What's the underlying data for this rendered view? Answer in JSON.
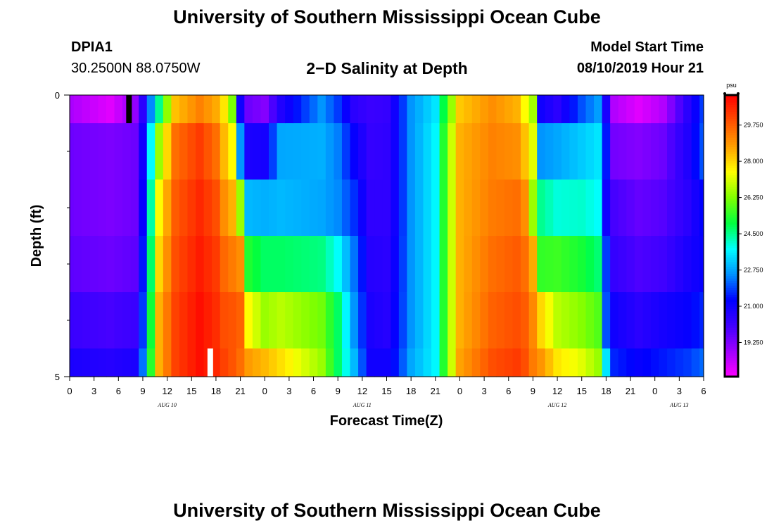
{
  "header": {
    "title": "University of Southern Mississippi Ocean Cube",
    "station": "DPIA1",
    "coords": "30.2500N 88.0750W",
    "subtitle": "2−D Salinity at Depth",
    "model_label": "Model Start Time",
    "model_time": "08/10/2019 Hour 21"
  },
  "footer": {
    "title": "University of Southern Mississippi Ocean Cube"
  },
  "chart_data": {
    "type": "heatmap",
    "title": "2−D Salinity at Depth",
    "xlabel": "Forecast Time(Z)",
    "ylabel": "Depth (ft)",
    "x_start_hour": 0,
    "x_step_hours": 1,
    "x_tick_labels": [
      "0",
      "3",
      "6",
      "9",
      "12",
      "15",
      "18",
      "21",
      "0",
      "3",
      "6",
      "9",
      "12",
      "15",
      "18",
      "21",
      "0",
      "3",
      "6",
      "9",
      "12",
      "15",
      "18",
      "21",
      "0",
      "3",
      "6"
    ],
    "x_date_labels": [
      {
        "label": "AUG 10",
        "hour": 12
      },
      {
        "label": "AUG 11",
        "hour": 36
      },
      {
        "label": "AUG 12",
        "hour": 60
      },
      {
        "label": "AUG 13",
        "hour": 75
      }
    ],
    "y_tick_labels": [
      "0",
      "5"
    ],
    "ylim": [
      0,
      5
    ],
    "y_minor_ticks": [
      1,
      2,
      3,
      4
    ],
    "depth_levels": [
      0,
      1,
      2,
      3,
      4,
      5
    ],
    "colorbar": {
      "unit": "psu",
      "range": [
        17.6,
        31.2
      ],
      "tick_labels": [
        "19.250",
        "21.000",
        "22.750",
        "24.500",
        "26.250",
        "28.000",
        "29.750"
      ],
      "tick_values": [
        19.25,
        21.0,
        22.75,
        24.5,
        26.25,
        28.0,
        29.75
      ],
      "colors": [
        "#ff00ff",
        "#a000ff",
        "#4000ff",
        "#0000ff",
        "#0090ff",
        "#00ffff",
        "#00ff40",
        "#80ff00",
        "#ffff00",
        "#ffa000",
        "#ff5000",
        "#ff0000"
      ]
    },
    "markers": [
      {
        "hour": 7.3,
        "depth_top": 0,
        "depth_bottom": 0.5,
        "color": "#000000"
      },
      {
        "hour": 17.3,
        "depth_top": 4.5,
        "depth_bottom": 5,
        "color": "#ffffff"
      }
    ],
    "keyframes": [
      {
        "hour": 0,
        "values": [
          18.7,
          19.5,
          19.5,
          19.7,
          20.2,
          20.8
        ]
      },
      {
        "hour": 5,
        "values": [
          18.0,
          19.3,
          19.3,
          19.5,
          20.0,
          20.6
        ]
      },
      {
        "hour": 8,
        "values": [
          19.0,
          19.5,
          19.5,
          19.7,
          20.2,
          20.8
        ]
      },
      {
        "hour": 9,
        "values": [
          20.5,
          21.0,
          21.2,
          21.5,
          21.8,
          22.3
        ]
      },
      {
        "hour": 11,
        "values": [
          24.5,
          26.5,
          27.5,
          28.0,
          28.5,
          28.5
        ]
      },
      {
        "hour": 13,
        "values": [
          28.3,
          29.5,
          29.8,
          30.0,
          30.2,
          30.2
        ]
      },
      {
        "hour": 16,
        "values": [
          29.2,
          30.3,
          30.6,
          30.8,
          31.0,
          31.0
        ]
      },
      {
        "hour": 18,
        "values": [
          28.6,
          29.5,
          30.0,
          30.3,
          30.5,
          30.6
        ]
      },
      {
        "hour": 19,
        "values": [
          27.8,
          28.4,
          29.0,
          29.6,
          30.0,
          30.2
        ]
      },
      {
        "hour": 20,
        "values": [
          26.2,
          27.5,
          28.5,
          29.3,
          29.9,
          29.9
        ]
      },
      {
        "hour": 21,
        "values": [
          21.0,
          22.6,
          26.5,
          29.0,
          29.7,
          29.5
        ]
      },
      {
        "hour": 22,
        "values": [
          19.5,
          20.8,
          23.0,
          25.3,
          27.5,
          28.8
        ]
      },
      {
        "hour": 24,
        "values": [
          19.2,
          20.9,
          22.9,
          24.8,
          26.5,
          28.4
        ]
      },
      {
        "hour": 26,
        "values": [
          20.7,
          22.8,
          23.0,
          24.8,
          26.8,
          27.9
        ]
      },
      {
        "hour": 31,
        "values": [
          22.6,
          22.9,
          22.8,
          24.6,
          26.1,
          26.5
        ]
      },
      {
        "hour": 33,
        "values": [
          21.8,
          22.4,
          22.5,
          23.8,
          24.8,
          24.8
        ]
      },
      {
        "hour": 35,
        "values": [
          20.5,
          21.2,
          21.7,
          22.3,
          22.6,
          23.0
        ]
      },
      {
        "hour": 37,
        "values": [
          20.2,
          20.3,
          20.4,
          20.6,
          20.8,
          21.0
        ]
      },
      {
        "hour": 39,
        "values": [
          20.3,
          20.4,
          20.4,
          20.5,
          20.6,
          21.0
        ]
      },
      {
        "hour": 40,
        "values": [
          21.0,
          21.0,
          21.0,
          21.1,
          21.2,
          21.4
        ]
      },
      {
        "hour": 42,
        "values": [
          22.6,
          22.6,
          22.6,
          22.6,
          22.6,
          22.8
        ]
      },
      {
        "hour": 45,
        "values": [
          23.5,
          23.7,
          23.7,
          23.7,
          23.7,
          23.7
        ]
      },
      {
        "hour": 47,
        "values": [
          26.5,
          27.0,
          27.0,
          27.0,
          27.0,
          27.0
        ]
      },
      {
        "hour": 48,
        "values": [
          28.2,
          28.5,
          28.5,
          28.5,
          28.5,
          28.7
        ]
      },
      {
        "hour": 52,
        "values": [
          29.0,
          29.2,
          29.3,
          29.5,
          29.7,
          30.0
        ]
      },
      {
        "hour": 55,
        "values": [
          28.5,
          29.0,
          29.5,
          29.8,
          30.0,
          30.3
        ]
      },
      {
        "hour": 56,
        "values": [
          27.5,
          28.3,
          29.0,
          29.5,
          29.8,
          30.0
        ]
      },
      {
        "hour": 57,
        "values": [
          26.6,
          27.2,
          26.5,
          28.6,
          29.1,
          29.3
        ]
      },
      {
        "hour": 58,
        "values": [
          21.0,
          22.6,
          24.5,
          25.5,
          28.0,
          28.9
        ]
      },
      {
        "hour": 60,
        "values": [
          20.5,
          22.8,
          24.0,
          25.6,
          26.8,
          27.8
        ]
      },
      {
        "hour": 63,
        "values": [
          22.0,
          23.2,
          24.1,
          25.2,
          26.3,
          27.2
        ]
      },
      {
        "hour": 65,
        "values": [
          22.7,
          23.5,
          23.8,
          24.7,
          25.8,
          26.5
        ]
      },
      {
        "hour": 66,
        "values": [
          20.8,
          21.5,
          21.0,
          21.8,
          22.0,
          23.5
        ]
      },
      {
        "hour": 67,
        "values": [
          18.6,
          19.4,
          20.0,
          20.3,
          21.0,
          21.6
        ]
      },
      {
        "hour": 70,
        "values": [
          18.0,
          19.2,
          19.6,
          19.9,
          20.5,
          21.2
        ]
      },
      {
        "hour": 73,
        "values": [
          18.6,
          19.5,
          19.8,
          20.1,
          20.9,
          21.5
        ]
      },
      {
        "hour": 76,
        "values": [
          20.5,
          20.7,
          20.5,
          20.8,
          21.2,
          21.8
        ]
      },
      {
        "hour": 78,
        "values": [
          21.8,
          22.0,
          21.3,
          21.2,
          21.6,
          22.2
        ]
      }
    ]
  }
}
